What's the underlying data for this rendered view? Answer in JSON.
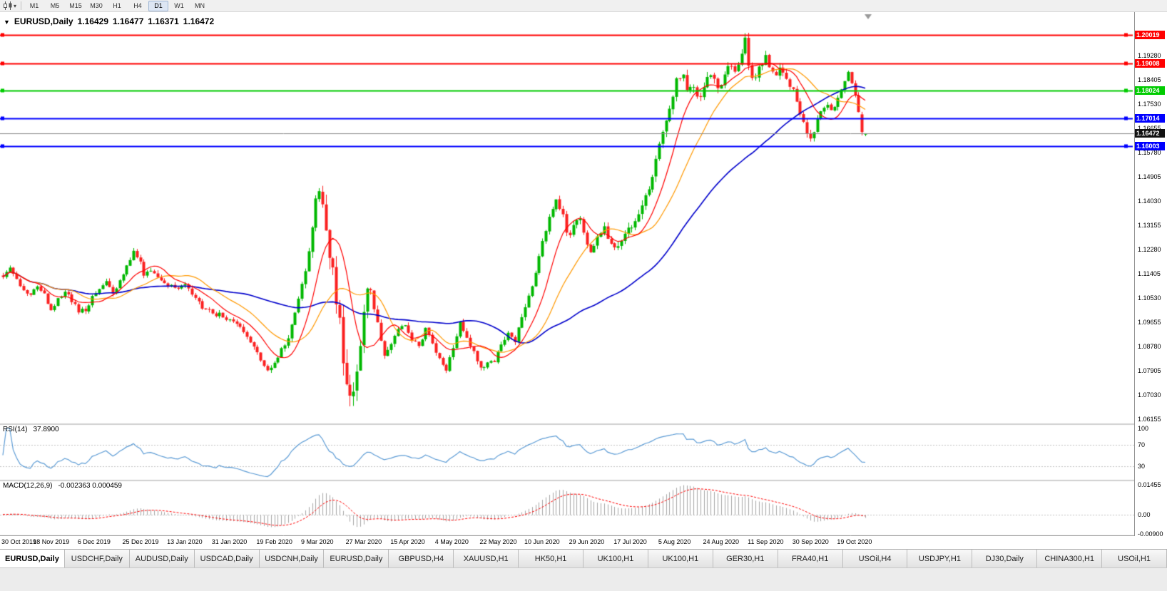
{
  "toolbar": {
    "timeframes": [
      {
        "label": "M1",
        "active": false
      },
      {
        "label": "M5",
        "active": false
      },
      {
        "label": "M15",
        "active": false
      },
      {
        "label": "M30",
        "active": false
      },
      {
        "label": "H1",
        "active": false
      },
      {
        "label": "H4",
        "active": false
      },
      {
        "label": "D1",
        "active": true
      },
      {
        "label": "W1",
        "active": false
      },
      {
        "label": "MN",
        "active": false
      }
    ]
  },
  "chart": {
    "title": {
      "symbol": "EURUSD,Daily",
      "open": "1.16429",
      "high": "1.16477",
      "low": "1.16371",
      "close": "1.16472"
    },
    "levels": [
      {
        "price": 1.20019,
        "label": "1.20019",
        "color": "#ff0000"
      },
      {
        "price": 1.19008,
        "label": "1.19008",
        "color": "#ff0000"
      },
      {
        "price": 1.18024,
        "label": "1.18024",
        "color": "#00cc00"
      },
      {
        "price": 1.17014,
        "label": "1.17014",
        "color": "#0000ff"
      },
      {
        "price": 1.16003,
        "label": "1.16003",
        "color": "#0000ff"
      }
    ],
    "bid": {
      "price": 1.16472,
      "label": "1.16472",
      "color": "#111111"
    },
    "y_axis_labels": [
      "1.19280",
      "1.18405",
      "1.17530",
      "1.16655",
      "1.15780",
      "1.14905",
      "1.14030",
      "1.13155",
      "1.12280",
      "1.11405",
      "1.10530",
      "1.09655",
      "1.08780",
      "1.07905",
      "1.07030",
      "1.06155"
    ],
    "x_axis_labels": [
      "30 Oct 2019",
      "18 Nov 2019",
      "6 Dec 2019",
      "25 Dec 2019",
      "13 Jan 2020",
      "31 Jan 2020",
      "19 Feb 2020",
      "9 Mar 2020",
      "27 Mar 2020",
      "15 Apr 2020",
      "4 May 2020",
      "22 May 2020",
      "10 Jun 2020",
      "29 Jun 2020",
      "17 Jul 2020",
      "5 Aug 2020",
      "24 Aug 2020",
      "11 Sep 2020",
      "30 Sep 2020",
      "19 Oct 2020"
    ]
  },
  "rsi_panel": {
    "title": "RSI(14)",
    "value": "37.8900",
    "axis_labels": [
      "100",
      "70",
      "30"
    ],
    "line_color": "#5b9bd5"
  },
  "macd_panel": {
    "title": "MACD(12,26,9)",
    "values": "-0.002363 0.000459",
    "axis_labels": [
      "0.01455",
      "0.00",
      "-0.00900"
    ]
  },
  "tabs": [
    {
      "label": "EURUSD,Daily",
      "active": true
    },
    {
      "label": "USDCHF,Daily",
      "active": false
    },
    {
      "label": "AUDUSD,Daily",
      "active": false
    },
    {
      "label": "USDCAD,Daily",
      "active": false
    },
    {
      "label": "USDCNH,Daily",
      "active": false
    },
    {
      "label": "EURUSD,Daily",
      "active": false
    },
    {
      "label": "GBPUSD,H4",
      "active": false
    },
    {
      "label": "XAUUSD,H1",
      "active": false
    },
    {
      "label": "HK50,H1",
      "active": false
    },
    {
      "label": "UK100,H1",
      "active": false
    },
    {
      "label": "UK100,H1",
      "active": false
    },
    {
      "label": "GER30,H1",
      "active": false
    },
    {
      "label": "FRA40,H1",
      "active": false
    },
    {
      "label": "USOil,H4",
      "active": false
    },
    {
      "label": "USDJPY,H1",
      "active": false
    },
    {
      "label": "DJ30,Daily",
      "active": false
    },
    {
      "label": "CHINA300,H1",
      "active": false
    },
    {
      "label": "USOil,H1",
      "active": false
    }
  ],
  "chart_data": {
    "type": "candlestick",
    "symbol": "EURUSD",
    "period": "Daily",
    "n_candles": 252,
    "y_range": [
      1.06,
      1.2085
    ],
    "last_bar": {
      "o": 1.16429,
      "h": 1.16477,
      "l": 1.16371,
      "c": 1.16472
    },
    "moving_averages": [
      {
        "period": 10,
        "color": "#ff0000"
      },
      {
        "period": 21,
        "color": "#ff9900"
      },
      {
        "period": 55,
        "color": "#0000cc"
      }
    ],
    "rsi": {
      "period": 14,
      "last": 37.89
    },
    "macd": {
      "fast": 12,
      "slow": 26,
      "signal": 9,
      "last_macd": -0.002363,
      "last_signal": 0.000459
    },
    "price_path": [
      [
        0.0,
        1.1135
      ],
      [
        0.008,
        1.1162
      ],
      [
        0.016,
        1.112
      ],
      [
        0.024,
        1.1082
      ],
      [
        0.032,
        1.107
      ],
      [
        0.04,
        1.1102
      ],
      [
        0.048,
        1.1062
      ],
      [
        0.056,
        1.1012
      ],
      [
        0.064,
        1.1052
      ],
      [
        0.072,
        1.1076
      ],
      [
        0.08,
        1.104
      ],
      [
        0.088,
        1.1002
      ],
      [
        0.096,
        1.1012
      ],
      [
        0.104,
        1.1062
      ],
      [
        0.112,
        1.1082
      ],
      [
        0.12,
        1.1112
      ],
      [
        0.128,
        1.1072
      ],
      [
        0.136,
        1.1112
      ],
      [
        0.144,
        1.1172
      ],
      [
        0.152,
        1.1222
      ],
      [
        0.158,
        1.1192
      ],
      [
        0.164,
        1.1132
      ],
      [
        0.172,
        1.1162
      ],
      [
        0.18,
        1.1122
      ],
      [
        0.19,
        1.1102
      ],
      [
        0.2,
        1.1082
      ],
      [
        0.21,
        1.1102
      ],
      [
        0.22,
        1.1062
      ],
      [
        0.23,
        1.1022
      ],
      [
        0.24,
        1.1002
      ],
      [
        0.25,
        1.0992
      ],
      [
        0.26,
        1.0982
      ],
      [
        0.27,
        1.0972
      ],
      [
        0.28,
        1.0932
      ],
      [
        0.29,
        1.0882
      ],
      [
        0.3,
        1.0822
      ],
      [
        0.31,
        1.079
      ],
      [
        0.32,
        1.0852
      ],
      [
        0.33,
        1.0902
      ],
      [
        0.34,
        1.1012
      ],
      [
        0.35,
        1.1142
      ],
      [
        0.358,
        1.1302
      ],
      [
        0.366,
        1.1462
      ],
      [
        0.372,
        1.1352
      ],
      [
        0.378,
        1.1202
      ],
      [
        0.384,
        1.1102
      ],
      [
        0.39,
        1.0962
      ],
      [
        0.396,
        1.0822
      ],
      [
        0.403,
        1.068
      ],
      [
        0.41,
        1.0782
      ],
      [
        0.417,
        1.0982
      ],
      [
        0.424,
        1.1102
      ],
      [
        0.43,
        1.1032
      ],
      [
        0.436,
        1.0942
      ],
      [
        0.442,
        1.0842
      ],
      [
        0.45,
        1.0882
      ],
      [
        0.458,
        1.0932
      ],
      [
        0.466,
        1.0952
      ],
      [
        0.474,
        1.0902
      ],
      [
        0.482,
        1.0872
      ],
      [
        0.49,
        1.0942
      ],
      [
        0.498,
        1.0892
      ],
      [
        0.506,
        1.0832
      ],
      [
        0.514,
        1.0792
      ],
      [
        0.522,
        1.0872
      ],
      [
        0.53,
        1.0962
      ],
      [
        0.538,
        1.0902
      ],
      [
        0.546,
        1.0852
      ],
      [
        0.554,
        1.0802
      ],
      [
        0.562,
        1.0812
      ],
      [
        0.57,
        1.0832
      ],
      [
        0.578,
        1.0892
      ],
      [
        0.586,
        1.0922
      ],
      [
        0.594,
        1.0902
      ],
      [
        0.602,
        1.0982
      ],
      [
        0.61,
        1.1062
      ],
      [
        0.618,
        1.1152
      ],
      [
        0.626,
        1.1262
      ],
      [
        0.634,
        1.1362
      ],
      [
        0.642,
        1.1402
      ],
      [
        0.65,
        1.1342
      ],
      [
        0.656,
        1.1262
      ],
      [
        0.662,
        1.1312
      ],
      [
        0.668,
        1.1352
      ],
      [
        0.674,
        1.1272
      ],
      [
        0.68,
        1.1212
      ],
      [
        0.686,
        1.1242
      ],
      [
        0.692,
        1.1292
      ],
      [
        0.698,
        1.1312
      ],
      [
        0.704,
        1.1252
      ],
      [
        0.71,
        1.1232
      ],
      [
        0.716,
        1.1262
      ],
      [
        0.722,
        1.1282
      ],
      [
        0.728,
        1.1312
      ],
      [
        0.734,
        1.1322
      ],
      [
        0.74,
        1.1362
      ],
      [
        0.746,
        1.1422
      ],
      [
        0.752,
        1.1482
      ],
      [
        0.758,
        1.1562
      ],
      [
        0.764,
        1.1642
      ],
      [
        0.77,
        1.1722
      ],
      [
        0.776,
        1.1782
      ],
      [
        0.782,
        1.1842
      ],
      [
        0.788,
        1.1872
      ],
      [
        0.794,
        1.1782
      ],
      [
        0.8,
        1.1822
      ],
      [
        0.806,
        1.1762
      ],
      [
        0.812,
        1.1812
      ],
      [
        0.818,
        1.1842
      ],
      [
        0.824,
        1.1842
      ],
      [
        0.83,
        1.1792
      ],
      [
        0.836,
        1.1852
      ],
      [
        0.842,
        1.1902
      ],
      [
        0.848,
        1.1862
      ],
      [
        0.854,
        1.1912
      ],
      [
        0.86,
        1.1992
      ],
      [
        0.866,
        1.1872
      ],
      [
        0.872,
        1.1832
      ],
      [
        0.878,
        1.1892
      ],
      [
        0.884,
        1.1932
      ],
      [
        0.89,
        1.1872
      ],
      [
        0.896,
        1.1852
      ],
      [
        0.902,
        1.1882
      ],
      [
        0.908,
        1.1852
      ],
      [
        0.914,
        1.1812
      ],
      [
        0.92,
        1.1772
      ],
      [
        0.926,
        1.1702
      ],
      [
        0.932,
        1.1642
      ],
      [
        0.938,
        1.1632
      ],
      [
        0.944,
        1.1702
      ],
      [
        0.95,
        1.1742
      ],
      [
        0.956,
        1.1762
      ],
      [
        0.962,
        1.1732
      ],
      [
        0.968,
        1.1782
      ],
      [
        0.974,
        1.1832
      ],
      [
        0.98,
        1.1872
      ],
      [
        0.986,
        1.1812
      ],
      [
        0.992,
        1.1732
      ],
      [
        1.0,
        1.1647
      ]
    ]
  }
}
